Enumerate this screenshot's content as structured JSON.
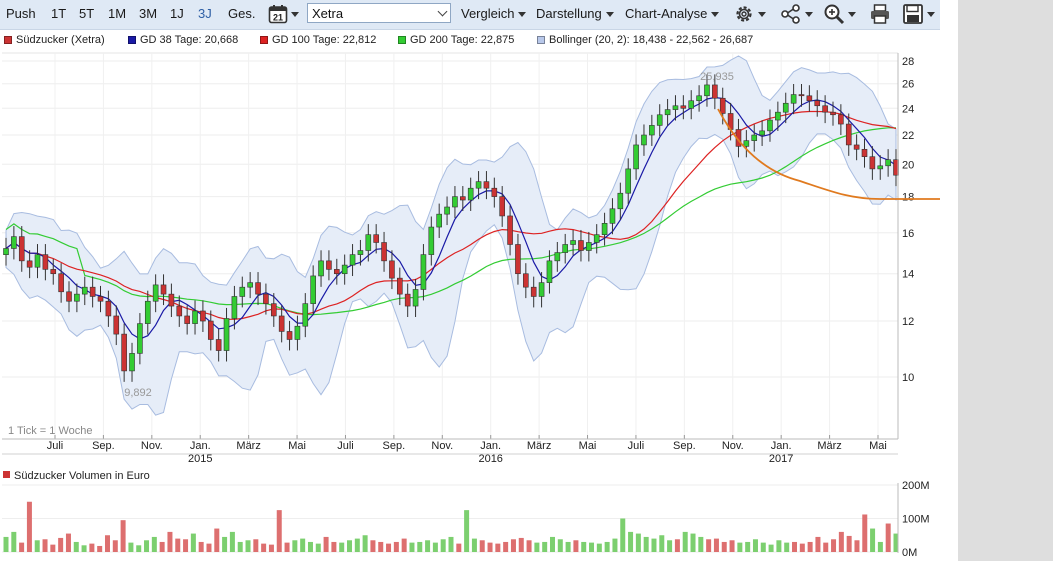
{
  "toolbar": {
    "range_buttons": [
      "Push",
      "1T",
      "5T",
      "1M",
      "3M",
      "1J",
      "3J",
      "Ges."
    ],
    "active_range": "3J",
    "calendar_day": "21",
    "exchange": "Xetra",
    "menus": [
      "Vergleich",
      "Darstellung",
      "Chart-Analyse"
    ],
    "icons": [
      "settings-icon",
      "share-icon",
      "zoom-icon",
      "print-icon",
      "save-icon"
    ]
  },
  "legend": [
    {
      "label": "Südzucker (Xetra)",
      "color": "#cc3333"
    },
    {
      "label": "GD 38 Tage: 20,668",
      "color": "#1a1aa6"
    },
    {
      "label": "GD 100 Tage: 22,812",
      "color": "#dd2222"
    },
    {
      "label": "GD 200 Tage: 22,875",
      "color": "#33cc33"
    },
    {
      "label": "Bollinger (20, 2): 18,438 - 22,562 - 26,687",
      "color": "#b8c8ea"
    }
  ],
  "chart_data": [
    {
      "type": "candlestick",
      "title": "Südzucker (Xetra)",
      "y_scale": "log",
      "yticks": [
        10,
        12,
        14,
        16,
        18,
        20,
        22,
        24,
        26,
        28
      ],
      "ytick_labels": [
        "10",
        "12",
        "14",
        "16",
        "18",
        "20",
        "22",
        "24",
        "26",
        "28"
      ],
      "x_labels": [
        "Juli",
        "Sep.",
        "Nov.",
        "Jan.",
        "März",
        "Mai",
        "Juli",
        "Sep.",
        "Nov.",
        "Jan.",
        "März",
        "Mai",
        "Juli",
        "Sep.",
        "Nov.",
        "Jan.",
        "März",
        "Mai"
      ],
      "year_labels": [
        {
          "label": "2015",
          "under": "Jan."
        },
        {
          "label": "2016",
          "under": "Jan."
        },
        {
          "label": "2017",
          "under": "Jan."
        }
      ],
      "note": "1 Tick = 1 Woche",
      "annotations": {
        "max_label": "25,935",
        "min_label": "9,892"
      },
      "close_weekly": [
        15.2,
        15.8,
        14.6,
        14.3,
        14.9,
        14.2,
        14.0,
        13.2,
        12.8,
        13.1,
        13.4,
        13.0,
        12.8,
        12.2,
        11.5,
        10.2,
        10.8,
        11.9,
        12.8,
        13.5,
        13.1,
        12.6,
        12.2,
        11.9,
        12.4,
        12.0,
        11.3,
        10.9,
        12.1,
        13.0,
        13.4,
        13.6,
        13.1,
        12.7,
        12.2,
        11.6,
        11.3,
        11.8,
        12.7,
        13.9,
        14.6,
        14.2,
        14.0,
        14.4,
        14.9,
        15.1,
        15.9,
        15.5,
        14.6,
        13.8,
        13.1,
        12.6,
        13.3,
        14.9,
        16.3,
        17.0,
        17.4,
        18.0,
        17.8,
        18.5,
        18.9,
        18.5,
        18.0,
        16.9,
        15.4,
        14.0,
        13.4,
        13.0,
        13.6,
        14.6,
        15.0,
        15.4,
        15.6,
        15.1,
        15.5,
        15.9,
        16.5,
        17.3,
        18.2,
        19.7,
        21.3,
        22.0,
        22.7,
        23.5,
        23.9,
        24.2,
        24.0,
        24.6,
        25.0,
        25.9,
        24.8,
        23.6,
        22.4,
        21.2,
        21.6,
        22.0,
        22.3,
        23.1,
        23.7,
        24.4,
        25.1,
        25.0,
        24.6,
        24.2,
        23.7,
        23.5,
        22.8,
        21.3,
        21.0,
        20.5,
        19.7,
        19.9,
        20.3,
        19.3
      ],
      "bollinger": {
        "middle_last": 22.562,
        "lower_last": 18.438,
        "upper_last": 26.687
      },
      "moving_averages": [
        {
          "name": "GD 38",
          "last": 20.668,
          "color": "#1a1aa6"
        },
        {
          "name": "GD 100",
          "last": 22.812,
          "color": "#dd2222"
        },
        {
          "name": "GD 200",
          "last": 22.875,
          "color": "#33cc33"
        }
      ],
      "handdrawn_annotation_color": "#e07a1f"
    },
    {
      "type": "bar",
      "title": "Südzucker Volumen in Euro",
      "yticks": [
        0,
        100,
        200
      ],
      "ytick_labels": [
        "0M",
        "100M",
        "200M"
      ],
      "values_millions": [
        45,
        60,
        28,
        150,
        35,
        38,
        22,
        42,
        55,
        30,
        20,
        25,
        18,
        50,
        35,
        95,
        28,
        20,
        35,
        45,
        30,
        60,
        40,
        38,
        55,
        30,
        25,
        70,
        45,
        60,
        30,
        35,
        38,
        25,
        22,
        125,
        28,
        35,
        40,
        30,
        25,
        45,
        30,
        28,
        35,
        40,
        50,
        35,
        30,
        25,
        30,
        40,
        28,
        30,
        35,
        28,
        38,
        45,
        25,
        125,
        40,
        35,
        28,
        25,
        30,
        38,
        42,
        35,
        28,
        30,
        45,
        38,
        30,
        35,
        30,
        28,
        25,
        30,
        40,
        100,
        60,
        55,
        45,
        40,
        50,
        35,
        38,
        60,
        55,
        45,
        38,
        40,
        30,
        35,
        28,
        30,
        38,
        28,
        22,
        35,
        28,
        30,
        25,
        30,
        45,
        28,
        38,
        60,
        48,
        35,
        112,
        70,
        30,
        85,
        55
      ]
    }
  ]
}
